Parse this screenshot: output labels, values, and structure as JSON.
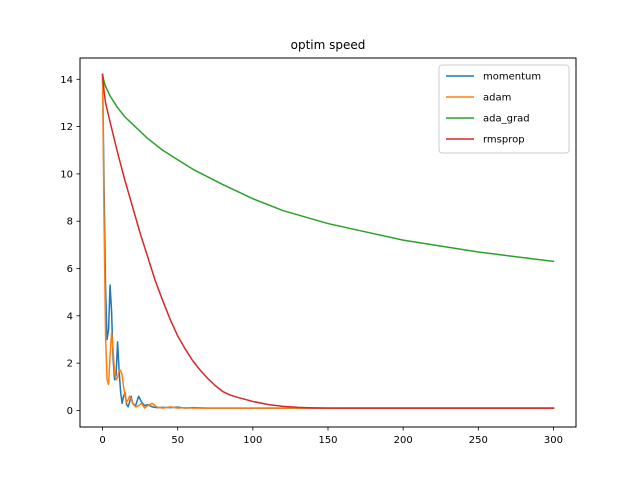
{
  "chart_data": {
    "type": "line",
    "title": "optim speed",
    "xlabel": "",
    "ylabel": "",
    "xlim": [
      -15,
      315
    ],
    "ylim": [
      -0.7,
      14.9
    ],
    "x_ticks": [
      0,
      50,
      100,
      150,
      200,
      250,
      300
    ],
    "y_ticks": [
      0,
      2,
      4,
      6,
      8,
      10,
      12,
      14
    ],
    "grid": false,
    "legend_position": "top-right",
    "series": [
      {
        "name": "momentum",
        "color": "#1f77b4",
        "x": [
          0,
          1,
          2,
          3,
          4,
          5,
          6,
          7,
          8,
          9,
          10,
          11,
          12,
          13,
          14,
          15,
          16,
          17,
          18,
          19,
          20,
          22,
          24,
          26,
          28,
          30,
          33,
          36,
          40,
          45,
          50,
          55,
          60,
          70,
          80,
          100,
          150,
          200,
          250,
          300
        ],
        "y": [
          14.2,
          9.5,
          5.2,
          3.0,
          3.4,
          5.3,
          4.2,
          2.2,
          1.3,
          1.5,
          2.9,
          1.7,
          0.8,
          0.3,
          0.6,
          0.75,
          0.25,
          0.15,
          0.35,
          0.6,
          0.3,
          0.2,
          0.6,
          0.35,
          0.2,
          0.25,
          0.15,
          0.12,
          0.13,
          0.12,
          0.14,
          0.1,
          0.12,
          0.1,
          0.1,
          0.1,
          0.1,
          0.1,
          0.1,
          0.1
        ]
      },
      {
        "name": "adam",
        "color": "#ff7f0e",
        "x": [
          0,
          1,
          2,
          3,
          4,
          5,
          6,
          7,
          8,
          9,
          10,
          11,
          12,
          13,
          14,
          15,
          16,
          17,
          18,
          19,
          20,
          22,
          24,
          26,
          28,
          30,
          33,
          36,
          40,
          45,
          50,
          55,
          60,
          70,
          80,
          100,
          150,
          200,
          250,
          300
        ],
        "y": [
          14.2,
          8.0,
          3.2,
          1.3,
          1.1,
          2.3,
          3.3,
          2.6,
          1.6,
          1.3,
          1.4,
          1.7,
          1.7,
          1.5,
          1.0,
          0.6,
          0.35,
          0.45,
          0.6,
          0.5,
          0.3,
          0.15,
          0.2,
          0.3,
          0.1,
          0.2,
          0.3,
          0.15,
          0.1,
          0.15,
          0.1,
          0.12,
          0.1,
          0.1,
          0.1,
          0.1,
          0.1,
          0.1,
          0.1,
          0.1
        ]
      },
      {
        "name": "ada_grad",
        "color": "#2ca02c",
        "x": [
          0,
          1,
          2,
          5,
          10,
          15,
          20,
          30,
          40,
          50,
          60,
          80,
          100,
          120,
          150,
          200,
          250,
          300
        ],
        "y": [
          14.2,
          13.9,
          13.7,
          13.3,
          12.8,
          12.4,
          12.1,
          11.5,
          11.0,
          10.6,
          10.2,
          9.55,
          8.95,
          8.45,
          7.9,
          7.2,
          6.7,
          6.3
        ]
      },
      {
        "name": "rmsprop",
        "color": "#d62728",
        "x": [
          0,
          1,
          2,
          5,
          10,
          15,
          20,
          25,
          30,
          35,
          40,
          45,
          50,
          55,
          60,
          65,
          70,
          75,
          80,
          85,
          90,
          100,
          110,
          120,
          130,
          140,
          150,
          160,
          200,
          250,
          300
        ],
        "y": [
          14.2,
          13.5,
          13.0,
          12.2,
          10.9,
          9.7,
          8.6,
          7.5,
          6.5,
          5.5,
          4.65,
          3.85,
          3.15,
          2.6,
          2.1,
          1.7,
          1.35,
          1.05,
          0.8,
          0.65,
          0.55,
          0.38,
          0.25,
          0.17,
          0.13,
          0.11,
          0.1,
          0.1,
          0.1,
          0.1,
          0.1
        ]
      }
    ]
  }
}
